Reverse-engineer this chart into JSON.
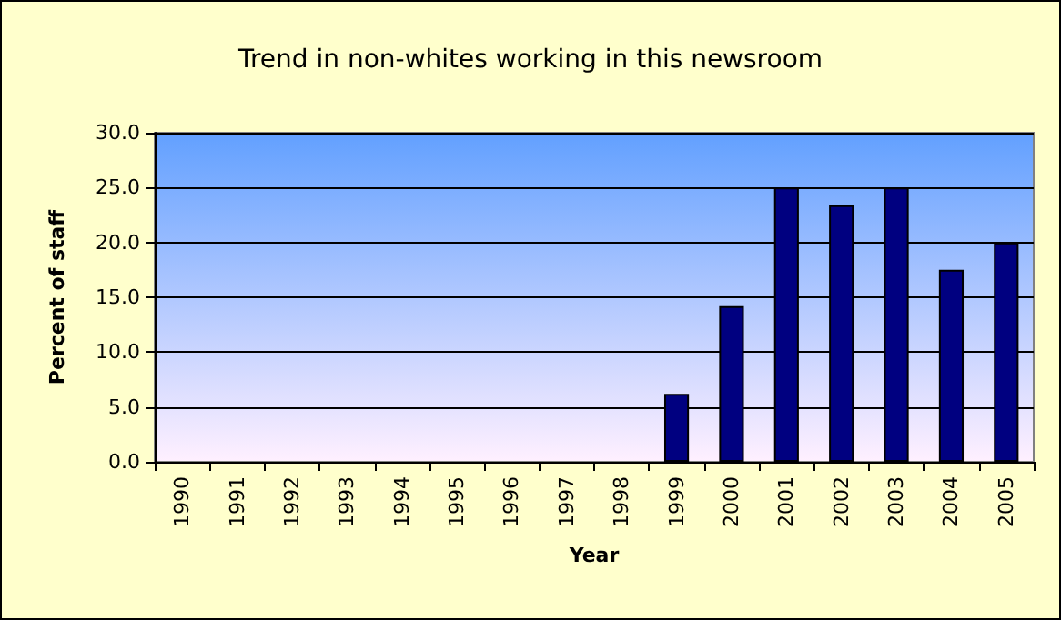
{
  "chart_data": {
    "type": "bar",
    "title": "Trend in non-whites working in this newsroom",
    "xlabel": "Year",
    "ylabel": "Percent of staff",
    "categories": [
      "1990",
      "1991",
      "1992",
      "1993",
      "1994",
      "1995",
      "1996",
      "1997",
      "1998",
      "1999",
      "2000",
      "2001",
      "2002",
      "2003",
      "2004",
      "2005"
    ],
    "values": [
      null,
      null,
      null,
      null,
      null,
      null,
      null,
      null,
      null,
      6.2,
      14.2,
      25.0,
      23.4,
      25.0,
      17.5,
      20.0
    ],
    "color": "#000080",
    "ylim": [
      0,
      30
    ],
    "yticks": [
      {
        "value": 0,
        "label": "0.0"
      },
      {
        "value": 5,
        "label": "5.0"
      },
      {
        "value": 10,
        "label": "10.0"
      },
      {
        "value": 15,
        "label": "15.0"
      },
      {
        "value": 20,
        "label": "20.0"
      },
      {
        "value": 25,
        "label": "25.0"
      },
      {
        "value": 30,
        "label": "30.0"
      }
    ],
    "grid": "y"
  }
}
